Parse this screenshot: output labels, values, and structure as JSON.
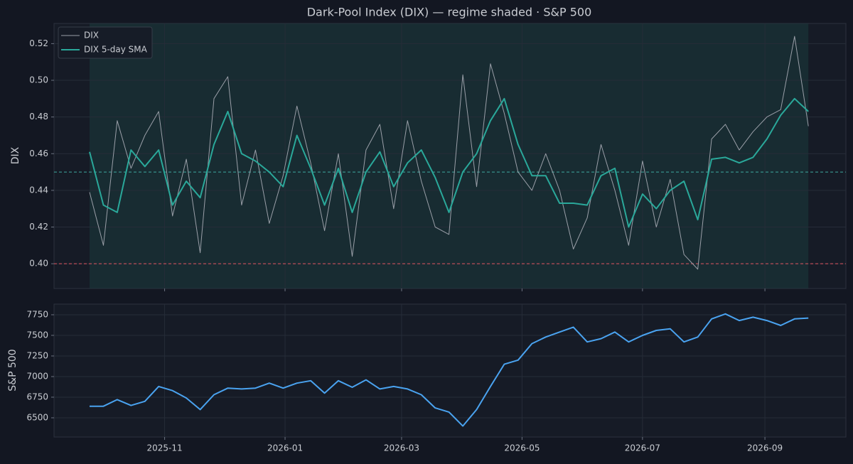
{
  "chart_data": [
    {
      "type": "line",
      "title": "Dark-Pool Index (DIX) — regime shaded · S&P 500",
      "ylabel": "DIX",
      "x": [
        "2025-09-24",
        "2025-10-01",
        "2025-10-08",
        "2025-10-15",
        "2025-10-22",
        "2025-10-29",
        "2025-11-05",
        "2025-11-12",
        "2025-11-19",
        "2025-11-26",
        "2025-12-03",
        "2025-12-10",
        "2025-12-17",
        "2025-12-24",
        "2025-12-31",
        "2026-01-07",
        "2026-01-14",
        "2026-01-21",
        "2026-01-28",
        "2026-02-04",
        "2026-02-11",
        "2026-02-18",
        "2026-02-25",
        "2026-03-04",
        "2026-03-11",
        "2026-03-18",
        "2026-03-25",
        "2026-04-01",
        "2026-04-08",
        "2026-04-15",
        "2026-04-22",
        "2026-04-29",
        "2026-05-06",
        "2026-05-13",
        "2026-05-20",
        "2026-05-27",
        "2026-06-03",
        "2026-06-10",
        "2026-06-17",
        "2026-06-24",
        "2026-07-01",
        "2026-07-08",
        "2026-07-15",
        "2026-07-22",
        "2026-07-29",
        "2026-08-05",
        "2026-08-12",
        "2026-08-19",
        "2026-08-26",
        "2026-09-02",
        "2026-09-09",
        "2026-09-16",
        "2026-09-23"
      ],
      "series": [
        {
          "name": "DIX",
          "color": "#9a9fa8",
          "values": [
            0.439,
            0.41,
            0.478,
            0.452,
            0.47,
            0.483,
            0.426,
            0.457,
            0.406,
            0.49,
            0.502,
            0.432,
            0.462,
            0.422,
            0.448,
            0.486,
            0.455,
            0.418,
            0.46,
            0.404,
            0.462,
            0.476,
            0.43,
            0.478,
            0.445,
            0.42,
            0.416,
            0.503,
            0.442,
            0.509,
            0.482,
            0.45,
            0.44,
            0.46,
            0.44,
            0.408,
            0.425,
            0.465,
            0.44,
            0.41,
            0.456,
            0.42,
            0.446,
            0.405,
            0.397,
            0.468,
            0.476,
            0.462,
            0.472,
            0.48,
            0.484,
            0.524,
            0.475
          ]
        },
        {
          "name": "DIX 5-day SMA",
          "color": "#2aa89a",
          "values": [
            0.461,
            0.432,
            0.428,
            0.462,
            0.453,
            0.462,
            0.432,
            0.445,
            0.436,
            0.465,
            0.483,
            0.46,
            0.456,
            0.45,
            0.442,
            0.47,
            0.452,
            0.432,
            0.452,
            0.428,
            0.45,
            0.461,
            0.442,
            0.455,
            0.462,
            0.447,
            0.428,
            0.45,
            0.46,
            0.478,
            0.49,
            0.465,
            0.448,
            0.448,
            0.433,
            0.433,
            0.432,
            0.448,
            0.452,
            0.42,
            0.438,
            0.43,
            0.44,
            0.445,
            0.424,
            0.457,
            0.458,
            0.455,
            0.458,
            0.468,
            0.481,
            0.49,
            0.483
          ]
        }
      ],
      "xlim": [
        "2025-09-06",
        "2026-10-12"
      ],
      "ylim": [
        0.3865,
        0.531
      ],
      "yticks": [
        {
          "value": 0.4,
          "label": "0.40"
        },
        {
          "value": 0.42,
          "label": "0.42"
        },
        {
          "value": 0.44,
          "label": "0.44"
        },
        {
          "value": 0.46,
          "label": "0.46"
        },
        {
          "value": 0.48,
          "label": "0.48"
        },
        {
          "value": 0.5,
          "label": "0.50"
        },
        {
          "value": 0.52,
          "label": "0.52"
        }
      ],
      "hlines": [
        {
          "value": 0.45,
          "color": "#3fa9a0"
        },
        {
          "value": 0.4,
          "color": "#e05560"
        }
      ],
      "shaded": {
        "x": [
          "2025-09-24",
          "2026-09-23"
        ],
        "color": "#1b3a3c"
      },
      "grid": true,
      "legend": "upper left"
    },
    {
      "type": "line",
      "ylabel": "S&P 500",
      "x": [
        "2025-09-24",
        "2025-10-01",
        "2025-10-08",
        "2025-10-15",
        "2025-10-22",
        "2025-10-29",
        "2025-11-05",
        "2025-11-12",
        "2025-11-19",
        "2025-11-26",
        "2025-12-03",
        "2025-12-10",
        "2025-12-17",
        "2025-12-24",
        "2025-12-31",
        "2026-01-07",
        "2026-01-14",
        "2026-01-21",
        "2026-01-28",
        "2026-02-04",
        "2026-02-11",
        "2026-02-18",
        "2026-02-25",
        "2026-03-04",
        "2026-03-11",
        "2026-03-18",
        "2026-03-25",
        "2026-04-01",
        "2026-04-08",
        "2026-04-15",
        "2026-04-22",
        "2026-04-29",
        "2026-05-06",
        "2026-05-13",
        "2026-05-20",
        "2026-05-27",
        "2026-06-03",
        "2026-06-10",
        "2026-06-17",
        "2026-06-24",
        "2026-07-01",
        "2026-07-08",
        "2026-07-15",
        "2026-07-22",
        "2026-07-29",
        "2026-08-05",
        "2026-08-12",
        "2026-08-19",
        "2026-08-26",
        "2026-09-02",
        "2026-09-09",
        "2026-09-16",
        "2026-09-23"
      ],
      "series": [
        {
          "color": "#4aa3f0",
          "values": [
            6640,
            6640,
            6720,
            6650,
            6700,
            6880,
            6830,
            6740,
            6600,
            6780,
            6860,
            6850,
            6860,
            6920,
            6860,
            6920,
            6950,
            6800,
            6950,
            6870,
            6960,
            6850,
            6880,
            6850,
            6780,
            6620,
            6570,
            6400,
            6600,
            6880,
            7150,
            7200,
            7400,
            7480,
            7540,
            7600,
            7420,
            7460,
            7540,
            7420,
            7500,
            7560,
            7580,
            7420,
            7480,
            7700,
            7760,
            7680,
            7720,
            7680,
            7620,
            7700,
            7710
          ]
        }
      ],
      "xlim": [
        "2025-09-06",
        "2026-10-12"
      ],
      "xticks": [
        {
          "value": "2025-11-01",
          "label": "2025-11"
        },
        {
          "value": "2026-01-01",
          "label": "2026-01"
        },
        {
          "value": "2026-03-01",
          "label": "2026-03"
        },
        {
          "value": "2026-05-01",
          "label": "2026-05"
        },
        {
          "value": "2026-07-01",
          "label": "2026-07"
        },
        {
          "value": "2026-09-01",
          "label": "2026-09"
        }
      ],
      "ylim": [
        6267,
        7879
      ],
      "yticks": [
        6500,
        6750,
        7000,
        7250,
        7500,
        7750
      ],
      "grid": true
    }
  ]
}
